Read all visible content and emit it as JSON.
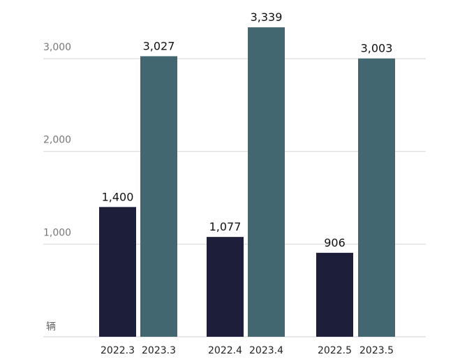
{
  "chart_data": {
    "type": "bar",
    "categories": [
      "2022.3",
      "2023.3",
      "2022.4",
      "2023.4",
      "2022.5",
      "2023.5"
    ],
    "values": [
      1400,
      3027,
      1077,
      3339,
      906,
      3003
    ],
    "value_labels": [
      "1,400",
      "3,027",
      "1,077",
      "3,339",
      "906",
      "3,003"
    ],
    "unit": "辆",
    "ylim": [
      0,
      3400
    ],
    "yticks": [
      1000,
      2000,
      3000
    ],
    "ytick_labels": [
      "1,000",
      "2,000",
      "3,000"
    ],
    "grid": true,
    "colors": {
      "bar_2022": "#1d1f3a",
      "bar_2023": "#426770"
    }
  }
}
